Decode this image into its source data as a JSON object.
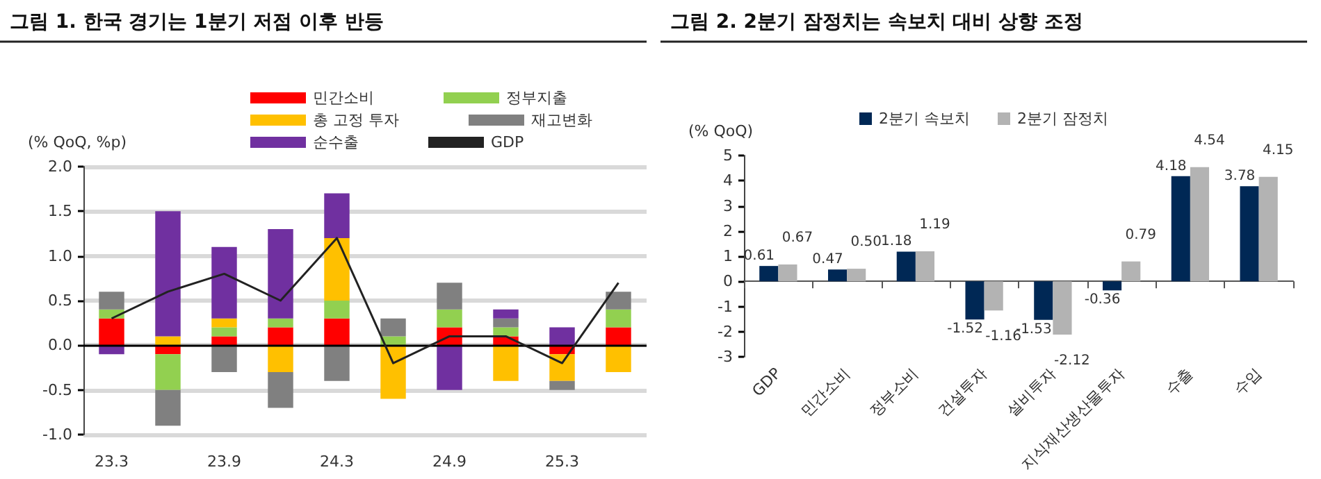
{
  "chart_data": [
    {
      "type": "bar",
      "title": "그림 1. 한국 경기는 1분기 저점 이후 반등",
      "ylabel": "(% QoQ, %p)",
      "stacked": true,
      "categories": [
        "23.3",
        null,
        "23.9",
        null,
        "24.3",
        null,
        "24.9",
        null,
        "25.3",
        null
      ],
      "series": [
        {
          "name": "민간소비",
          "color": "#ff0000",
          "values": [
            0.3,
            -0.1,
            0.1,
            0.2,
            0.3,
            0,
            0.2,
            0.1,
            -0.1,
            0.2
          ]
        },
        {
          "name": "정부지출",
          "color": "#92d050",
          "values": [
            0.1,
            -0.4,
            0.1,
            0.1,
            0.2,
            0.1,
            0.2,
            0.1,
            0,
            0.2
          ]
        },
        {
          "name": "총 고정 투자",
          "color": "#ffc000",
          "values": [
            0,
            0.1,
            0.1,
            -0.3,
            0.7,
            -0.6,
            0,
            -0.4,
            -0.3,
            -0.3
          ]
        },
        {
          "name": "재고변화",
          "color": "#808080",
          "values": [
            0.2,
            -0.4,
            -0.3,
            -0.4,
            -0.4,
            0.2,
            0.3,
            0.1,
            -0.1,
            0.2
          ]
        },
        {
          "name": "순수출",
          "color": "#7030a0",
          "values": [
            -0.1,
            1.4,
            0.8,
            1.0,
            0.5,
            0,
            -0.5,
            0.1,
            0.2,
            0
          ]
        },
        {
          "name": "GDP",
          "type": "line",
          "color": "#222222",
          "values": [
            0.3,
            0.6,
            0.8,
            0.5,
            1.2,
            -0.2,
            0.1,
            0.1,
            -0.2,
            0.7
          ]
        }
      ],
      "ylim": [
        -1,
        2
      ],
      "yticks": [
        {
          "value": -1,
          "label": "-1.0"
        },
        {
          "value": -0.5,
          "label": "-0.5"
        },
        {
          "value": 0,
          "label": "0.0"
        },
        {
          "value": 0.5,
          "label": "0.5"
        },
        {
          "value": 1,
          "label": "1.0"
        },
        {
          "value": 1.5,
          "label": "1.5"
        },
        {
          "value": 2,
          "label": "2.0"
        }
      ],
      "ref_lines": [
        {
          "axis": "y",
          "value": 0,
          "color": "#000000"
        }
      ],
      "grid": "y",
      "legend": "top",
      "marker": "none"
    },
    {
      "type": "bar",
      "title": "그림 2. 2분기 잠정치는 속보치 대비 상향 조정",
      "ylabel": "(% QoQ)",
      "categories": [
        "GDP",
        "민간소비",
        "정부소비",
        "건설투자",
        "설비투자",
        "지식재산생산물투자",
        "수출",
        "수입"
      ],
      "series": [
        {
          "name": "2분기 속보치",
          "color": "#002855",
          "values": [
            0.61,
            0.47,
            1.18,
            -1.52,
            -1.53,
            -0.36,
            4.18,
            3.78
          ],
          "value_labels": [
            "0.61",
            "0.47",
            "1.18",
            "-1.52",
            "-1.53",
            "-0.36",
            "4.18",
            "3.78"
          ]
        },
        {
          "name": "2분기 잠정치",
          "color": "#b3b3b3",
          "values": [
            0.67,
            0.5,
            1.19,
            -1.16,
            -2.12,
            0.79,
            4.54,
            4.15
          ],
          "value_labels": [
            "0.67",
            "0.50",
            "1.19",
            "-1.16",
            "-2.12",
            "0.79",
            "4.54",
            "4.15"
          ]
        }
      ],
      "ylim": [
        -3,
        5
      ],
      "yticks": [
        -3,
        -2,
        -1,
        0,
        1,
        2,
        3,
        4,
        5
      ],
      "legend": "top"
    }
  ]
}
